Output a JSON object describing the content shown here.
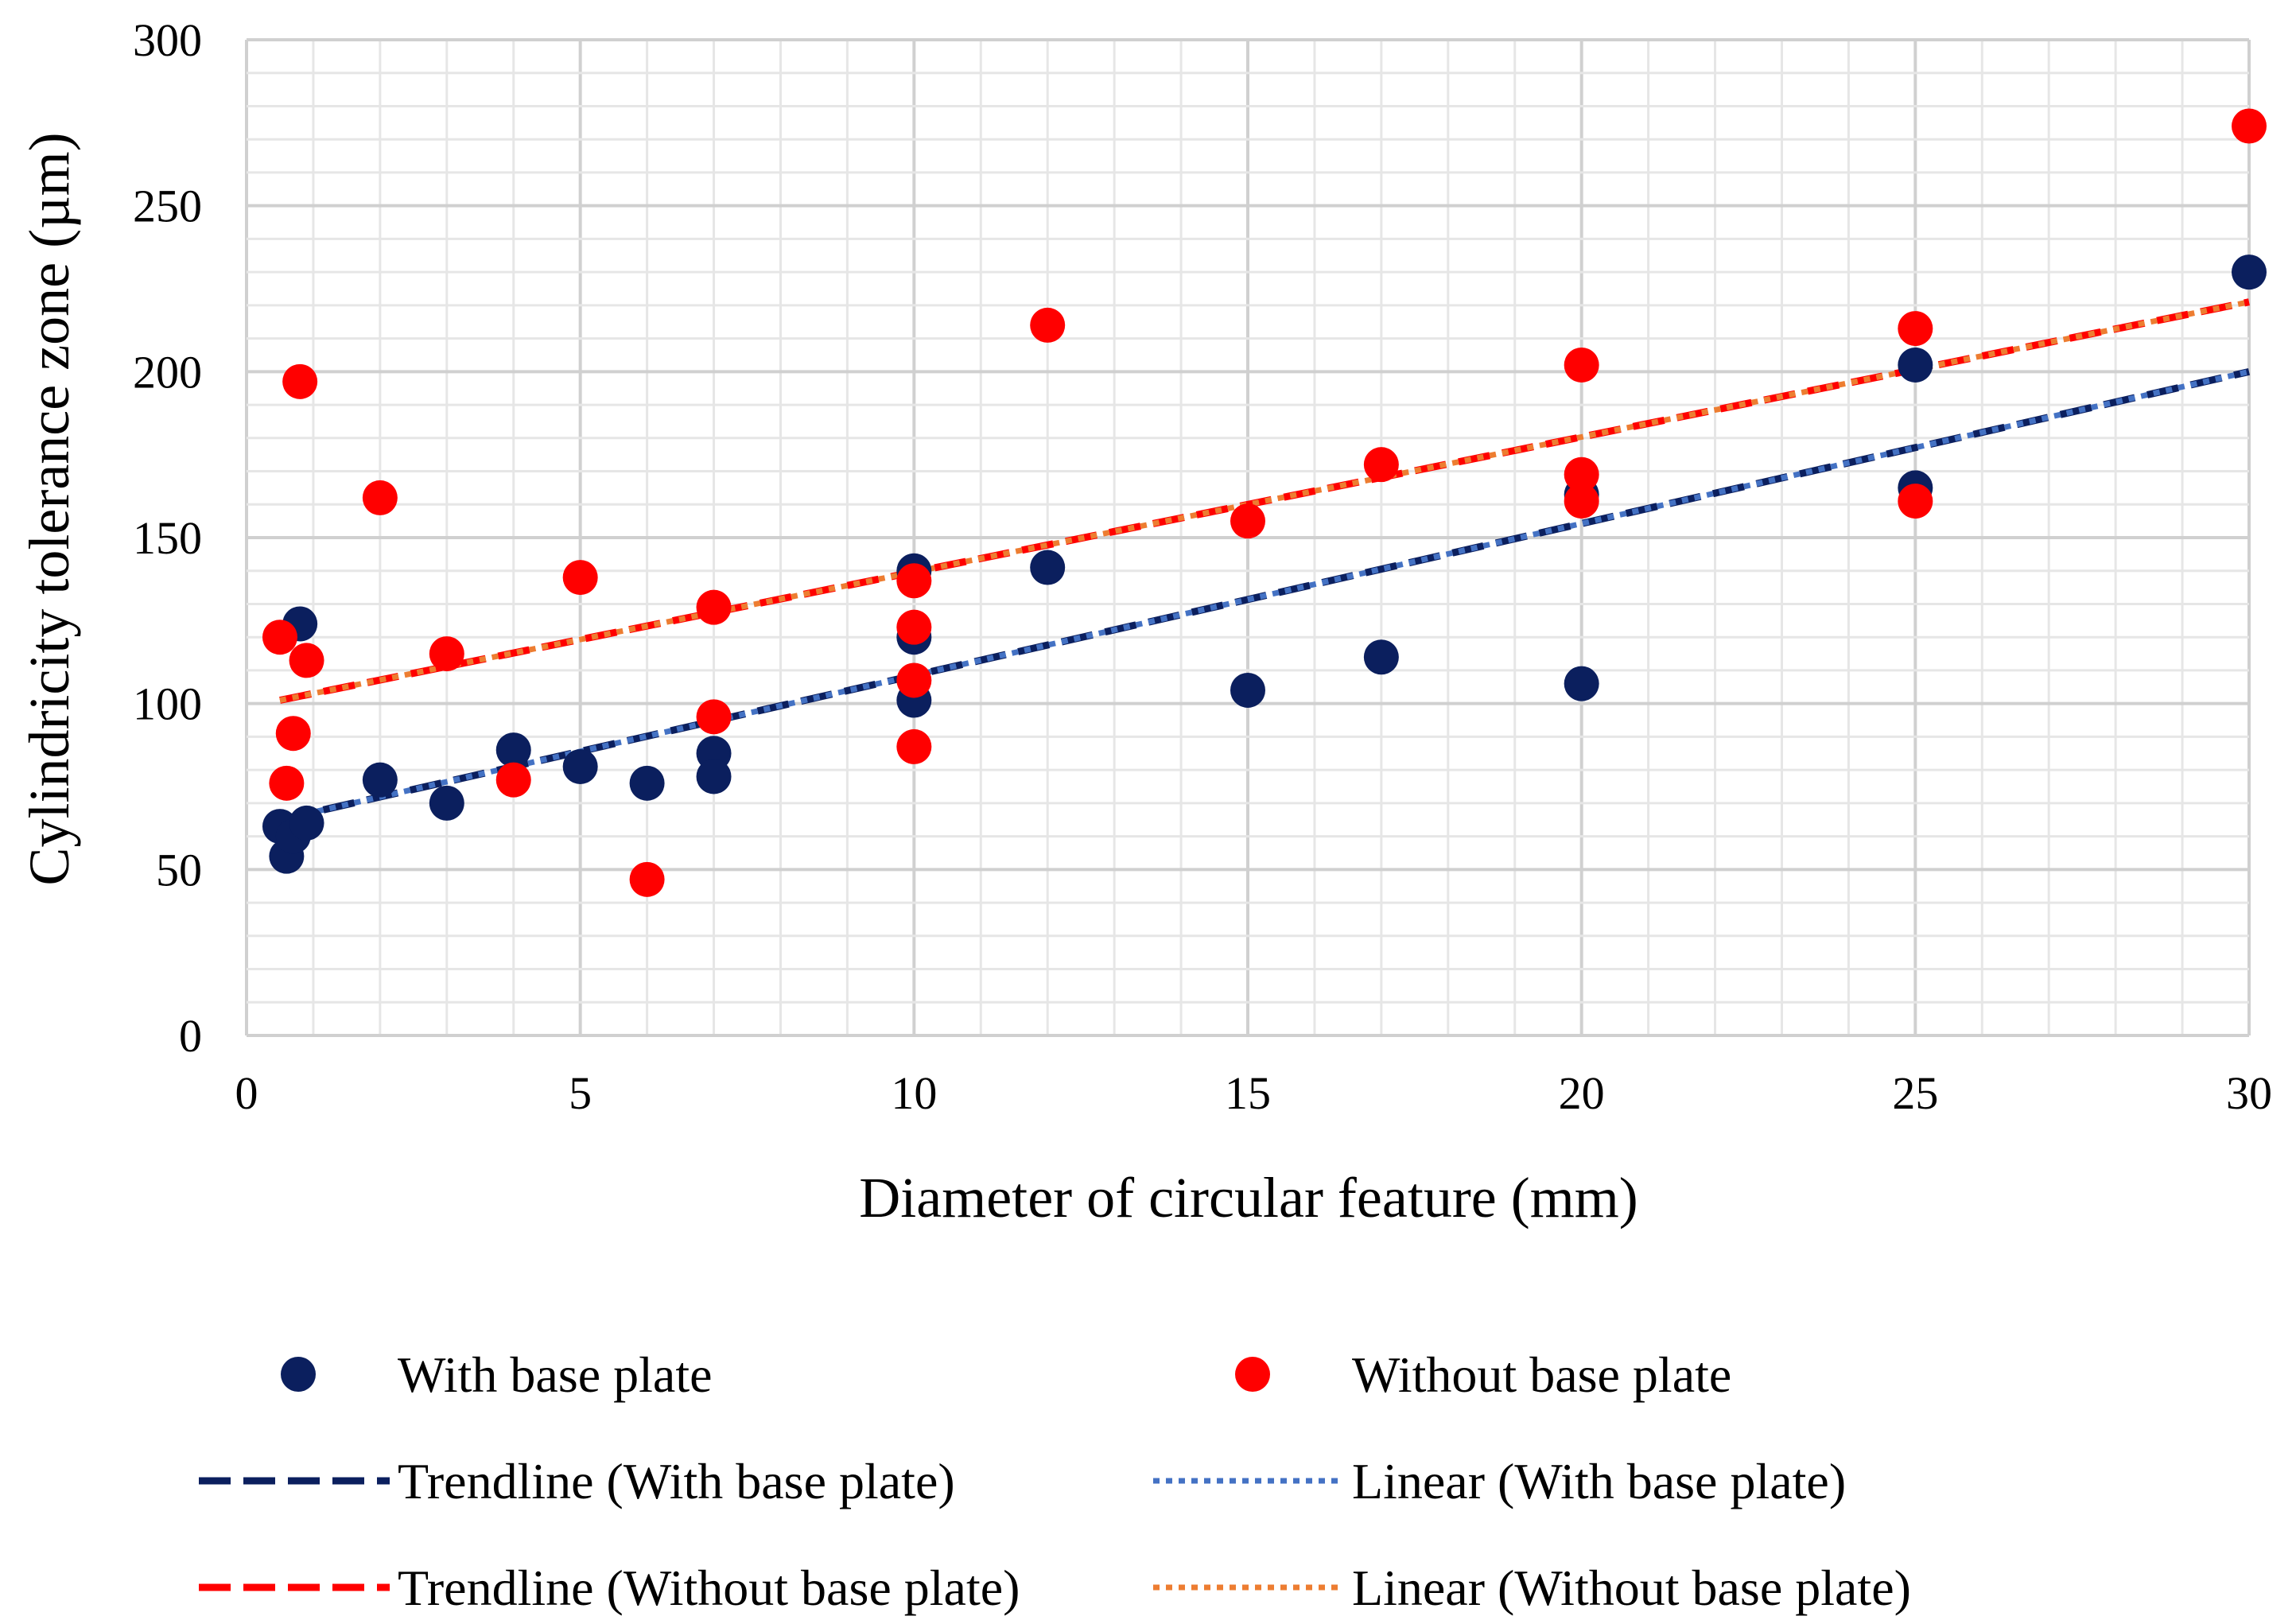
{
  "chart_data": {
    "type": "scatter",
    "xlabel": "Diameter of circular feature (mm)",
    "ylabel": "Cylindricity tolerance zone (µm)",
    "xlim": [
      0,
      30
    ],
    "ylim": [
      0,
      300
    ],
    "x_ticks": [
      "0",
      "5",
      "10",
      "15",
      "20",
      "25",
      "30"
    ],
    "y_ticks": [
      "0",
      "50",
      "100",
      "150",
      "200",
      "250",
      "300"
    ],
    "grid": true,
    "minor_grid": true,
    "legend_position": "bottom",
    "series": [
      {
        "name": "With base plate",
        "kind": "points",
        "color": "#0b1f5e",
        "points": [
          [
            0.5,
            63
          ],
          [
            0.6,
            54
          ],
          [
            0.7,
            60
          ],
          [
            0.8,
            124
          ],
          [
            0.9,
            64
          ],
          [
            2,
            77
          ],
          [
            3,
            70
          ],
          [
            4,
            86
          ],
          [
            5,
            81
          ],
          [
            6,
            76
          ],
          [
            7,
            85
          ],
          [
            7,
            78
          ],
          [
            10,
            140
          ],
          [
            10,
            120
          ],
          [
            10,
            101
          ],
          [
            12,
            141
          ],
          [
            15,
            104
          ],
          [
            17,
            114
          ],
          [
            20,
            106
          ],
          [
            20,
            163
          ],
          [
            25,
            202
          ],
          [
            25,
            165
          ],
          [
            30,
            230
          ]
        ]
      },
      {
        "name": "Without base plate",
        "kind": "points",
        "color": "#ff0000",
        "points": [
          [
            0.5,
            120
          ],
          [
            0.6,
            76
          ],
          [
            0.7,
            91
          ],
          [
            0.8,
            197
          ],
          [
            0.9,
            113
          ],
          [
            2,
            162
          ],
          [
            3,
            115
          ],
          [
            4,
            77
          ],
          [
            5,
            138
          ],
          [
            6,
            47
          ],
          [
            7,
            129
          ],
          [
            7,
            96
          ],
          [
            10,
            137
          ],
          [
            10,
            123
          ],
          [
            10,
            107
          ],
          [
            10,
            87
          ],
          [
            12,
            214
          ],
          [
            15,
            155
          ],
          [
            17,
            172
          ],
          [
            20,
            202
          ],
          [
            20,
            169
          ],
          [
            20,
            161
          ],
          [
            25,
            213
          ],
          [
            25,
            161
          ],
          [
            30,
            274
          ]
        ]
      },
      {
        "name": "Trendline (With base plate)",
        "kind": "line",
        "style": "dashed",
        "color": "#0b1f5e",
        "x": [
          0.5,
          30
        ],
        "y": [
          65,
          200
        ]
      },
      {
        "name": "Linear (With base plate)",
        "kind": "line",
        "style": "dotted",
        "color": "#4472c4",
        "x": [
          0.5,
          30
        ],
        "y": [
          65,
          200
        ]
      },
      {
        "name": "Trendline (Without base plate)",
        "kind": "line",
        "style": "dashed",
        "color": "#ff0000",
        "x": [
          0.5,
          30
        ],
        "y": [
          101,
          221
        ]
      },
      {
        "name": "Linear (Without base plate)",
        "kind": "line",
        "style": "dotted",
        "color": "#ed7d31",
        "x": [
          0.5,
          30
        ],
        "y": [
          101,
          221
        ]
      }
    ]
  }
}
